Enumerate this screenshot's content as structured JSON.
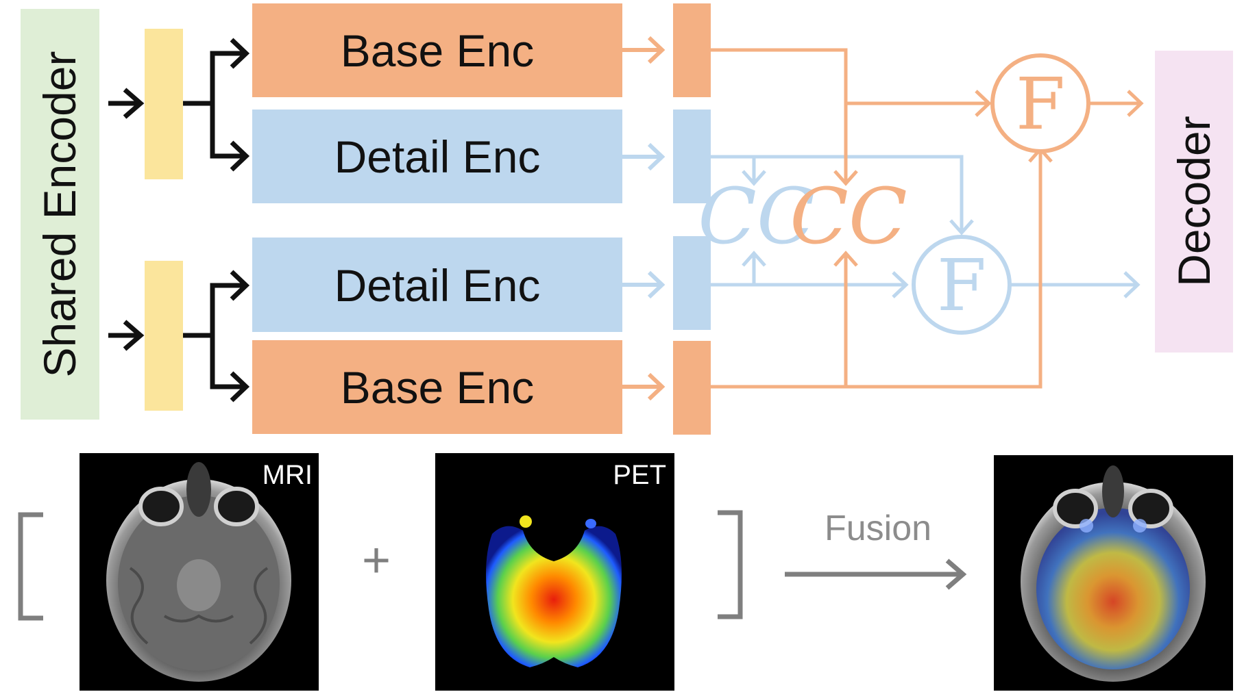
{
  "shared_encoder": {
    "label": "Shared Encoder",
    "color": "#dfeed6"
  },
  "projection_color": "#fbe59c",
  "decoder": {
    "label": "Decoder",
    "color": "#f5e3f2"
  },
  "colors": {
    "base": "#f4b083",
    "detail": "#bdd7ee",
    "arrow_black": "#111111",
    "bracket_gray": "#7f7f7f"
  },
  "encoders": {
    "base_top": "Base Enc",
    "detail_top": "Detail Enc",
    "detail_bottom": "Detail Enc",
    "base_bottom": "Base Enc"
  },
  "correlation_symbol": "CC",
  "fusion_symbol": "F",
  "images": {
    "mri_label": "MRI",
    "pet_label": "PET",
    "plus": "+",
    "fusion_label": "Fusion"
  }
}
